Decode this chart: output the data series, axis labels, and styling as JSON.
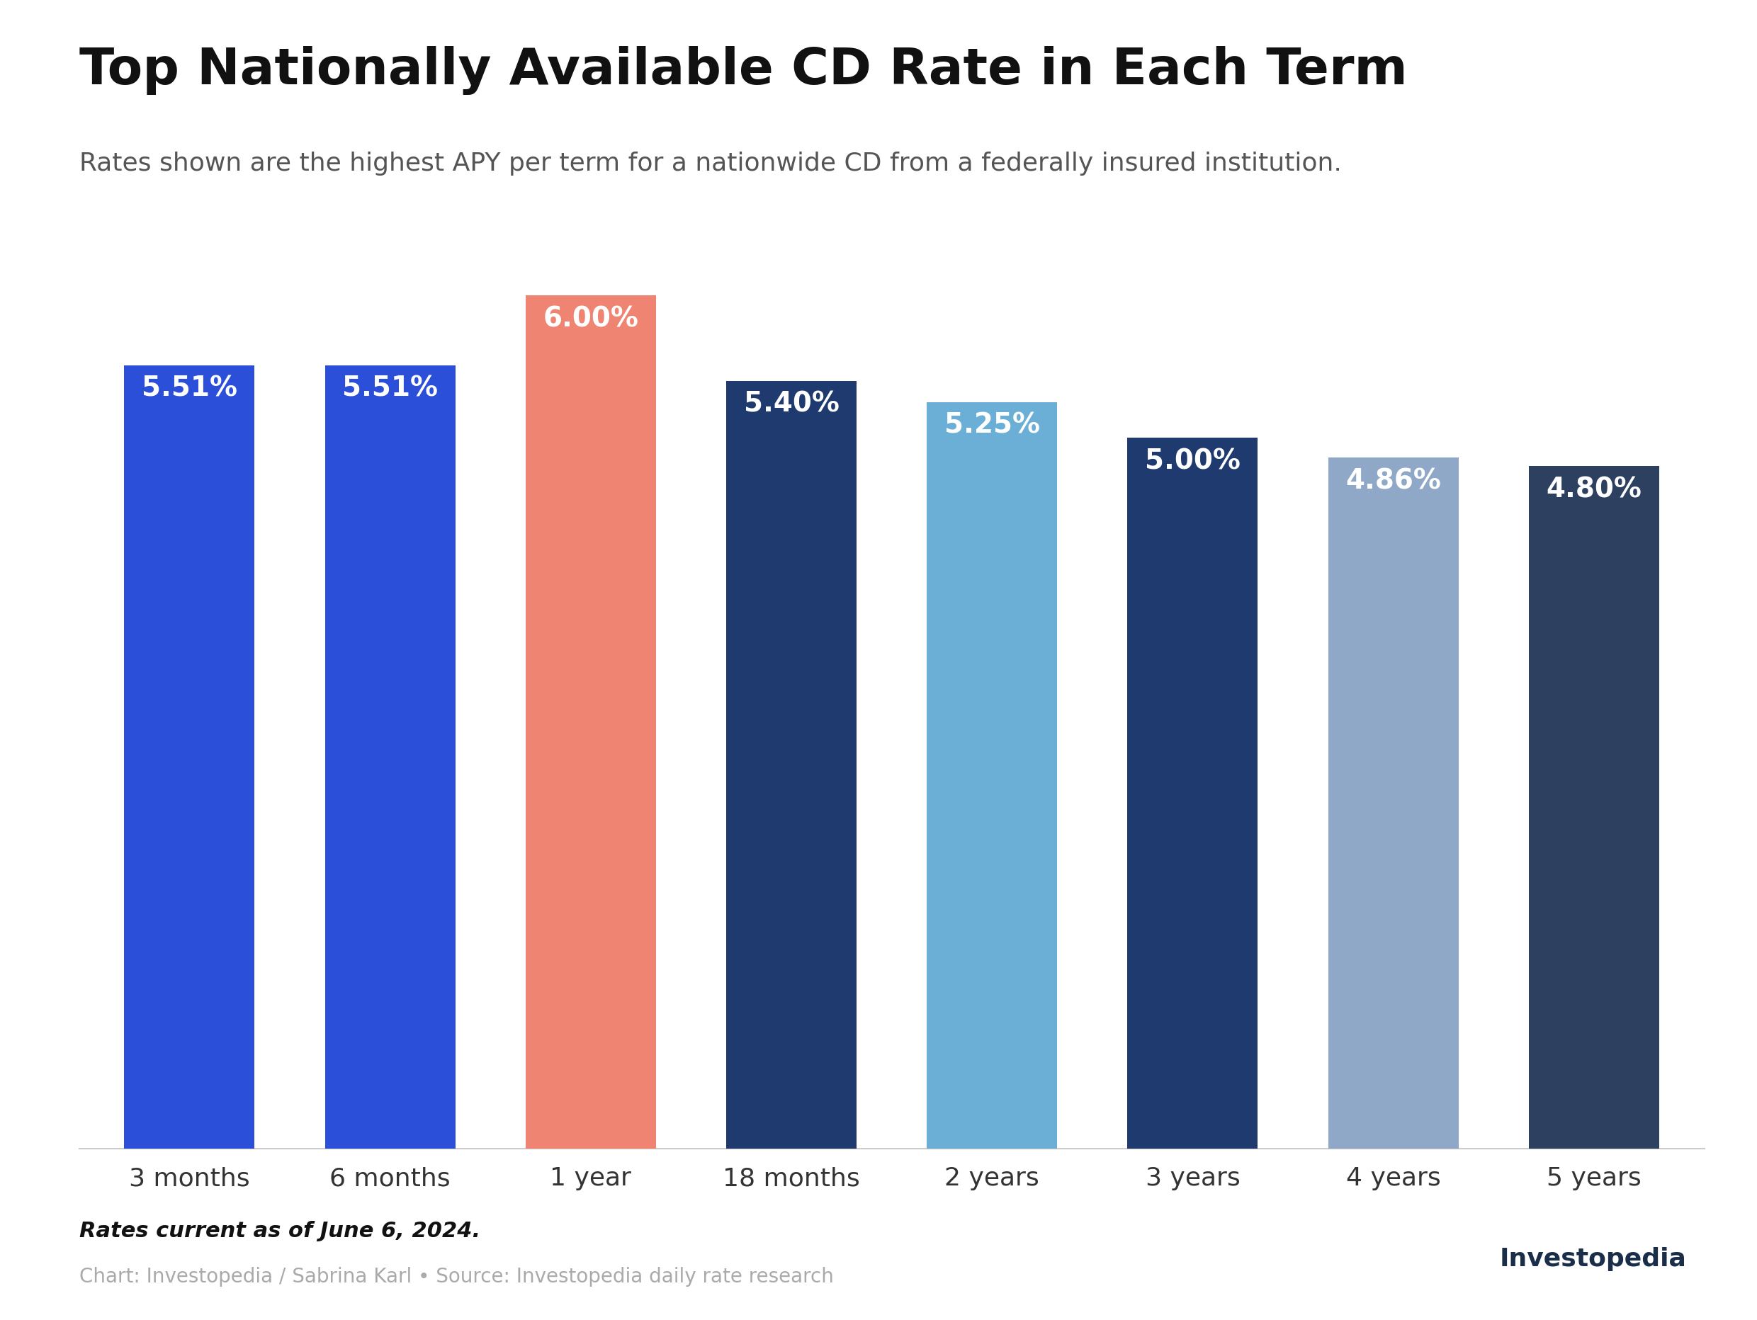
{
  "title": "Top Nationally Available CD Rate in Each Term",
  "subtitle": "Rates shown are the highest APY per term for a nationwide CD from a federally insured institution.",
  "categories": [
    "3 months",
    "6 months",
    "1 year",
    "18 months",
    "2 years",
    "3 years",
    "4 years",
    "5 years"
  ],
  "values": [
    5.51,
    5.51,
    6.0,
    5.4,
    5.25,
    5.0,
    4.86,
    4.8
  ],
  "labels": [
    "5.51%",
    "5.51%",
    "6.00%",
    "5.40%",
    "5.25%",
    "5.00%",
    "4.86%",
    "4.80%"
  ],
  "bar_colors": [
    "#2b4fd8",
    "#2b4fd8",
    "#f08472",
    "#1e3a6e",
    "#6baed6",
    "#1e3a6e",
    "#8fa8c8",
    "#2d4060"
  ],
  "background_color": "#ffffff",
  "title_fontsize": 52,
  "subtitle_fontsize": 26,
  "label_fontsize": 28,
  "tick_fontsize": 26,
  "footnote1": "Rates current as of June 6, 2024.",
  "footnote2": "Chart: Investopedia / Sabrina Karl • Source: Investopedia daily rate research",
  "ylim_min": 0,
  "ylim_max": 6.5,
  "bar_width": 0.65
}
